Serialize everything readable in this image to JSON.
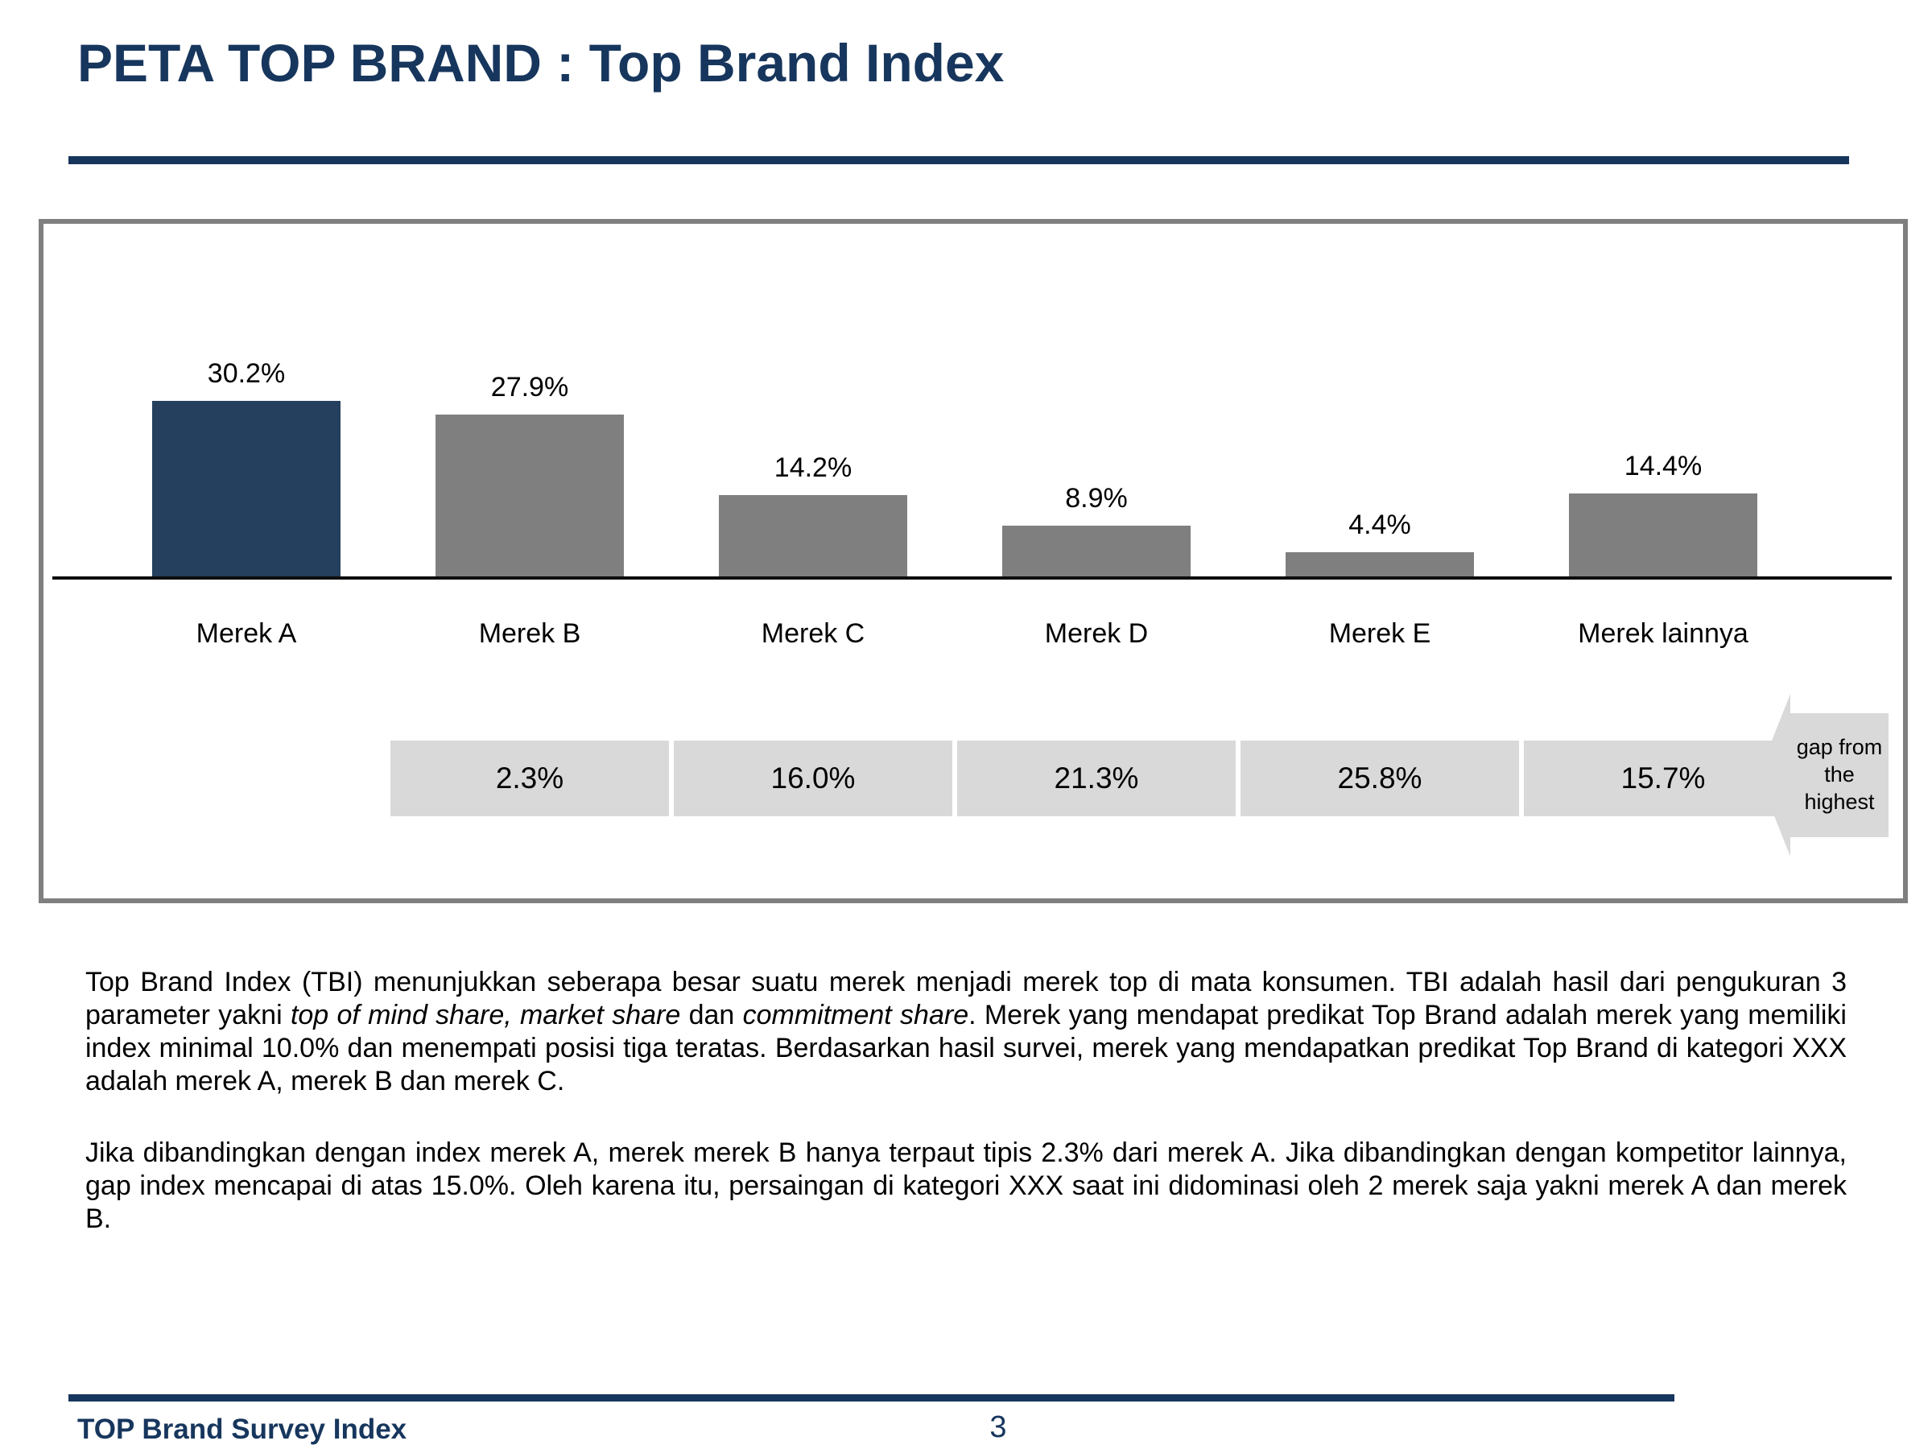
{
  "slide": {
    "title": "PETA TOP BRAND : Top Brand Index",
    "footer": {
      "label": "TOP Brand Survey Index",
      "page_number": "3"
    }
  },
  "chart_data": {
    "type": "bar",
    "title": "Top Brand Index",
    "categories": [
      "Merek A",
      "Merek B",
      "Merek C",
      "Merek D",
      "Merek E",
      "Merek lainnya"
    ],
    "values": [
      30.2,
      27.9,
      14.2,
      8.9,
      4.4,
      14.4
    ],
    "value_labels": [
      "30.2%",
      "27.9%",
      "14.2%",
      "8.9%",
      "4.4%",
      "14.4%"
    ],
    "highlight_index": 0,
    "ylim": [
      0,
      41
    ],
    "grid": false,
    "legend": false,
    "colors": {
      "highlight_bar": "#253F5E",
      "bar": "#7F7F7F",
      "gap_cell": "#D9D9D9",
      "axis": "#0D0D0D",
      "accent_navy": "#17365D"
    },
    "gap_row": {
      "cells": [
        {
          "category": "Merek B",
          "label": "2.3%"
        },
        {
          "category": "Merek C",
          "label": "16.0%"
        },
        {
          "category": "Merek D",
          "label": "21.3%"
        },
        {
          "category": "Merek E",
          "label": "25.8%"
        },
        {
          "category": "Merek lainnya",
          "label": "15.7%"
        }
      ],
      "arrow_label": "gap from the highest"
    }
  },
  "body": {
    "paragraph1_segments": [
      {
        "text": "Top Brand Index (TBI) menunjukkan seberapa besar suatu merek menjadi merek top di mata konsumen. TBI adalah hasil dari pengukuran 3 parameter yakni ",
        "italic": false
      },
      {
        "text": "top of mind share, market share",
        "italic": true
      },
      {
        "text": " dan ",
        "italic": false
      },
      {
        "text": "commitment share",
        "italic": true
      },
      {
        "text": ". Merek yang mendapat predikat Top Brand adalah merek yang memiliki index minimal 10.0% dan menempati posisi tiga teratas. Berdasarkan hasil survei, merek yang mendapatkan predikat Top Brand di kategori XXX adalah merek A, merek B dan merek C.",
        "italic": false
      }
    ],
    "paragraph2": "Jika dibandingkan dengan index merek A, merek merek B hanya terpaut tipis 2.3% dari merek A. Jika dibandingkan dengan kompetitor lainnya, gap index mencapai di atas 15.0%. Oleh karena itu, persaingan di kategori XXX saat ini didominasi oleh 2 merek saja yakni merek A dan merek B."
  }
}
